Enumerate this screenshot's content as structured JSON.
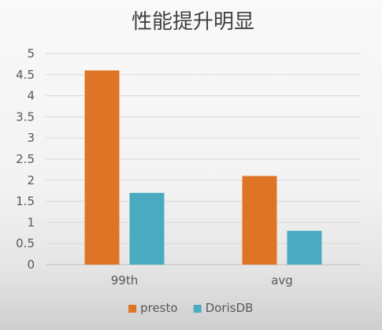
{
  "chart_data": {
    "type": "bar",
    "title": "性能提升明显",
    "categories": [
      "99th",
      "avg"
    ],
    "series": [
      {
        "name": "presto",
        "color": "#E07426",
        "values": [
          4.6,
          2.1
        ]
      },
      {
        "name": "DorisDB",
        "color": "#4AAAC0",
        "values": [
          1.7,
          0.8
        ]
      }
    ],
    "ylim": [
      0,
      5
    ],
    "yticks": [
      0,
      0.5,
      1,
      1.5,
      2,
      2.5,
      3,
      3.5,
      4,
      4.5,
      5
    ],
    "grid": true,
    "legend": "bottom",
    "xlabel": "",
    "ylabel": ""
  }
}
